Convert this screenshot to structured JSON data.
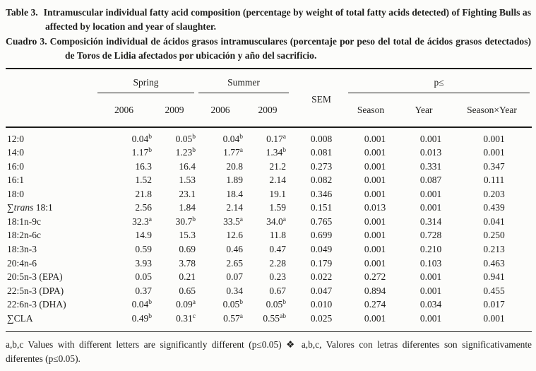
{
  "colors": {
    "paper": "#fcfcfa",
    "ink": "#1d1d1b"
  },
  "caption": {
    "en_label": "Table 3.",
    "en_text": "Intramuscular individual fatty acid composition (percentage by weight of total fatty acids detected) of Fighting Bulls as affected by location and year of slaughter.",
    "es_label": "Cuadro 3.",
    "es_text": "Composición individual de ácidos grasos intramusculares (porcentaje por peso del total de ácidos grasos detectados) de Toros de Lidia afectados por ubicación y año del sacrificio."
  },
  "table": {
    "group_headers": {
      "spring": "Spring",
      "summer": "Summer",
      "sem": "SEM",
      "p_threshold": "p≤"
    },
    "sub_headers": {
      "spring_2006": "2006",
      "spring_2009": "2009",
      "summer_2006": "2006",
      "summer_2009": "2009",
      "season": "Season",
      "year": "Year",
      "season_x_year": "Season×Year"
    },
    "rows": [
      {
        "sym": "",
        "it": "",
        "label": "12:0",
        "cells": [
          {
            "v": "0.04",
            "s": "b"
          },
          {
            "v": "0.05",
            "s": "b"
          },
          {
            "v": "0.04",
            "s": "b"
          },
          {
            "v": "0.17",
            "s": "a"
          },
          {
            "v": "0.008",
            "s": ""
          },
          {
            "v": "0.001",
            "s": ""
          },
          {
            "v": "0.001",
            "s": ""
          },
          {
            "v": "0.001",
            "s": ""
          }
        ]
      },
      {
        "sym": "",
        "it": "",
        "label": "14:0",
        "cells": [
          {
            "v": "1.17",
            "s": "b"
          },
          {
            "v": "1.23",
            "s": "b"
          },
          {
            "v": "1.77",
            "s": "a"
          },
          {
            "v": "1.34",
            "s": "b"
          },
          {
            "v": "0.081",
            "s": ""
          },
          {
            "v": "0.001",
            "s": ""
          },
          {
            "v": "0.013",
            "s": ""
          },
          {
            "v": "0.001",
            "s": ""
          }
        ]
      },
      {
        "sym": "",
        "it": "",
        "label": "16:0",
        "cells": [
          {
            "v": "16.3",
            "s": ""
          },
          {
            "v": "16.4",
            "s": ""
          },
          {
            "v": "20.8",
            "s": ""
          },
          {
            "v": "21.2",
            "s": ""
          },
          {
            "v": "0.273",
            "s": ""
          },
          {
            "v": "0.001",
            "s": ""
          },
          {
            "v": "0.331",
            "s": ""
          },
          {
            "v": "0.347",
            "s": ""
          }
        ]
      },
      {
        "sym": "",
        "it": "",
        "label": "16:1",
        "cells": [
          {
            "v": "1.52",
            "s": ""
          },
          {
            "v": "1.53",
            "s": ""
          },
          {
            "v": "1.89",
            "s": ""
          },
          {
            "v": "2.14",
            "s": ""
          },
          {
            "v": "0.082",
            "s": ""
          },
          {
            "v": "0.001",
            "s": ""
          },
          {
            "v": "0.087",
            "s": ""
          },
          {
            "v": "0.111",
            "s": ""
          }
        ]
      },
      {
        "sym": "",
        "it": "",
        "label": "18:0",
        "cells": [
          {
            "v": "21.8",
            "s": ""
          },
          {
            "v": "23.1",
            "s": ""
          },
          {
            "v": "18.4",
            "s": ""
          },
          {
            "v": "19.1",
            "s": ""
          },
          {
            "v": "0.346",
            "s": ""
          },
          {
            "v": "0.001",
            "s": ""
          },
          {
            "v": "0.001",
            "s": ""
          },
          {
            "v": "0.203",
            "s": ""
          }
        ]
      },
      {
        "sym": "∑",
        "it": "trans",
        "label": " 18:1",
        "cells": [
          {
            "v": "2.56",
            "s": ""
          },
          {
            "v": "1.84",
            "s": ""
          },
          {
            "v": "2.14",
            "s": ""
          },
          {
            "v": "1.59",
            "s": ""
          },
          {
            "v": "0.151",
            "s": ""
          },
          {
            "v": "0.013",
            "s": ""
          },
          {
            "v": "0.001",
            "s": ""
          },
          {
            "v": "0.439",
            "s": ""
          }
        ]
      },
      {
        "sym": "",
        "it": "",
        "label": "18:1n-9c",
        "cells": [
          {
            "v": "32.3",
            "s": "a"
          },
          {
            "v": "30.7",
            "s": "b"
          },
          {
            "v": "33.5",
            "s": "a"
          },
          {
            "v": "34.0",
            "s": "a"
          },
          {
            "v": "0.765",
            "s": ""
          },
          {
            "v": "0.001",
            "s": ""
          },
          {
            "v": "0.314",
            "s": ""
          },
          {
            "v": "0.041",
            "s": ""
          }
        ]
      },
      {
        "sym": "",
        "it": "",
        "label": "18:2n-6c",
        "cells": [
          {
            "v": "14.9",
            "s": ""
          },
          {
            "v": "15.3",
            "s": ""
          },
          {
            "v": "12.6",
            "s": ""
          },
          {
            "v": "11.8",
            "s": ""
          },
          {
            "v": "0.699",
            "s": ""
          },
          {
            "v": "0.001",
            "s": ""
          },
          {
            "v": "0.728",
            "s": ""
          },
          {
            "v": "0.250",
            "s": ""
          }
        ]
      },
      {
        "sym": "",
        "it": "",
        "label": "18:3n-3",
        "cells": [
          {
            "v": "0.59",
            "s": ""
          },
          {
            "v": "0.69",
            "s": ""
          },
          {
            "v": "0.46",
            "s": ""
          },
          {
            "v": "0.47",
            "s": ""
          },
          {
            "v": "0.049",
            "s": ""
          },
          {
            "v": "0.001",
            "s": ""
          },
          {
            "v": "0.210",
            "s": ""
          },
          {
            "v": "0.213",
            "s": ""
          }
        ]
      },
      {
        "sym": "",
        "it": "",
        "label": "20:4n-6",
        "cells": [
          {
            "v": "3.93",
            "s": ""
          },
          {
            "v": "3.78",
            "s": ""
          },
          {
            "v": "2.65",
            "s": ""
          },
          {
            "v": "2.28",
            "s": ""
          },
          {
            "v": "0.179",
            "s": ""
          },
          {
            "v": "0.001",
            "s": ""
          },
          {
            "v": "0.103",
            "s": ""
          },
          {
            "v": "0.463",
            "s": ""
          }
        ]
      },
      {
        "sym": "",
        "it": "",
        "label": "20:5n-3 (EPA)",
        "cells": [
          {
            "v": "0.05",
            "s": ""
          },
          {
            "v": "0.21",
            "s": ""
          },
          {
            "v": "0.07",
            "s": ""
          },
          {
            "v": "0.23",
            "s": ""
          },
          {
            "v": "0.022",
            "s": ""
          },
          {
            "v": "0.272",
            "s": ""
          },
          {
            "v": "0.001",
            "s": ""
          },
          {
            "v": "0.941",
            "s": ""
          }
        ]
      },
      {
        "sym": "",
        "it": "",
        "label": "22:5n-3 (DPA)",
        "cells": [
          {
            "v": "0.37",
            "s": ""
          },
          {
            "v": "0.65",
            "s": ""
          },
          {
            "v": "0.34",
            "s": ""
          },
          {
            "v": "0.67",
            "s": ""
          },
          {
            "v": "0.047",
            "s": ""
          },
          {
            "v": "0.894",
            "s": ""
          },
          {
            "v": "0.001",
            "s": ""
          },
          {
            "v": "0.455",
            "s": ""
          }
        ]
      },
      {
        "sym": "",
        "it": "",
        "label": "22:6n-3 (DHA)",
        "cells": [
          {
            "v": "0.04",
            "s": "b"
          },
          {
            "v": "0.09",
            "s": "a"
          },
          {
            "v": "0.05",
            "s": "b"
          },
          {
            "v": "0.05",
            "s": "b"
          },
          {
            "v": "0.010",
            "s": ""
          },
          {
            "v": "0.274",
            "s": ""
          },
          {
            "v": "0.034",
            "s": ""
          },
          {
            "v": "0.017",
            "s": ""
          }
        ]
      },
      {
        "sym": "∑",
        "it": "",
        "label": "CLA",
        "cells": [
          {
            "v": "0.49",
            "s": "b"
          },
          {
            "v": "0.31",
            "s": "c"
          },
          {
            "v": "0.57",
            "s": "a"
          },
          {
            "v": "0.55",
            "s": "ab"
          },
          {
            "v": "0.025",
            "s": ""
          },
          {
            "v": "0.001",
            "s": ""
          },
          {
            "v": "0.001",
            "s": ""
          },
          {
            "v": "0.001",
            "s": ""
          }
        ]
      }
    ]
  },
  "footnote": {
    "text": "a,b,c Values with different letters are significantly different (p≤0.05) ❖ a,b,c, Valores con letras diferentes son significativamente diferentes (p≤0.05)."
  }
}
